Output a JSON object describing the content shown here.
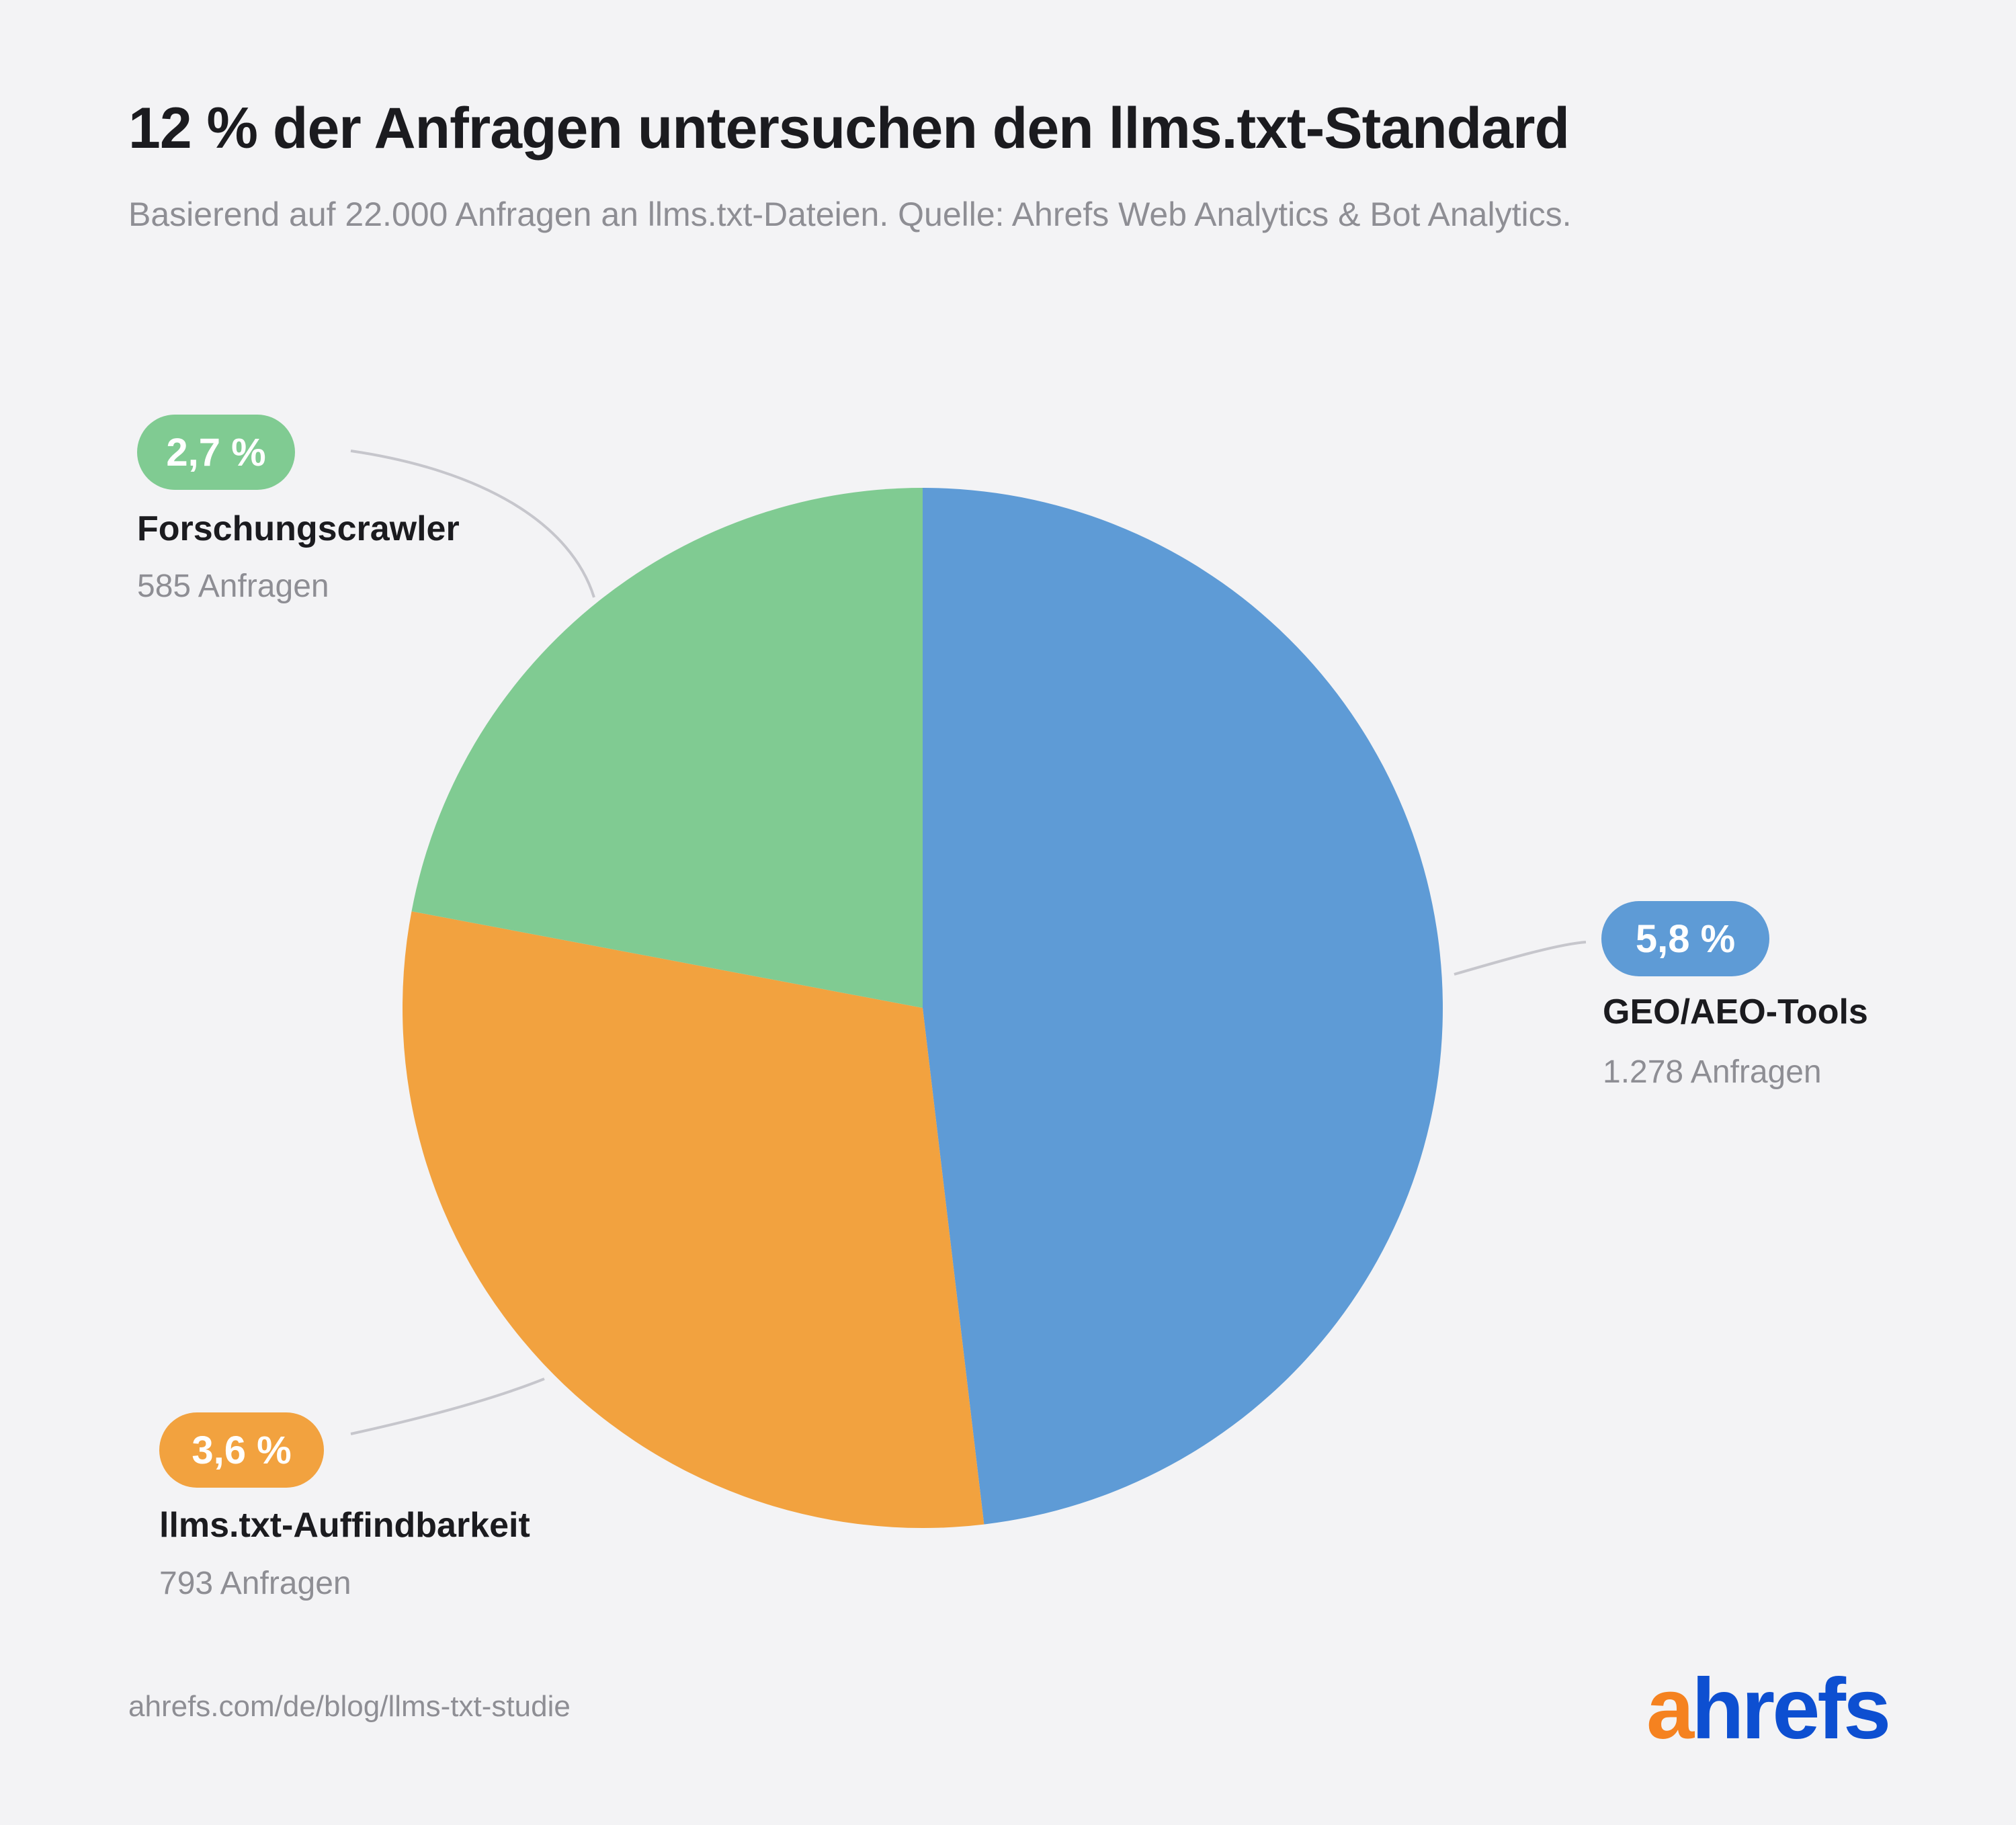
{
  "title": "12 % der Anfragen untersuchen den llms.txt-Standard",
  "subtitle": "Basierend auf 22.000 Anfragen an llms.txt-Dateien. Quelle: Ahrefs Web Analytics & Bot Analytics.",
  "footer": {
    "url": "ahrefs.com/de/blog/llms-txt-studie"
  },
  "logo": {
    "part1": "a",
    "part2": "hrefs",
    "color1": "#f58220",
    "color2": "#0d4fd1"
  },
  "colors": {
    "leader_line": "#c6c6cc"
  },
  "chart_data": {
    "type": "pie",
    "title": "12 % der Anfragen untersuchen den llms.txt-Standard",
    "slices": [
      {
        "label": "GEO/AEO-Tools",
        "value": 1278,
        "percent_label": "5,8 %",
        "count_label": "1.278 Anfragen",
        "color": "#5e9bd6"
      },
      {
        "label": "llms.txt-Auffindbarkeit",
        "value": 793,
        "percent_label": "3,6 %",
        "count_label": "793 Anfragen",
        "color": "#f2a23f"
      },
      {
        "label": "Forschungscrawler",
        "value": 585,
        "percent_label": "2,7 %",
        "count_label": "585 Anfragen",
        "color": "#80cb92"
      }
    ]
  }
}
